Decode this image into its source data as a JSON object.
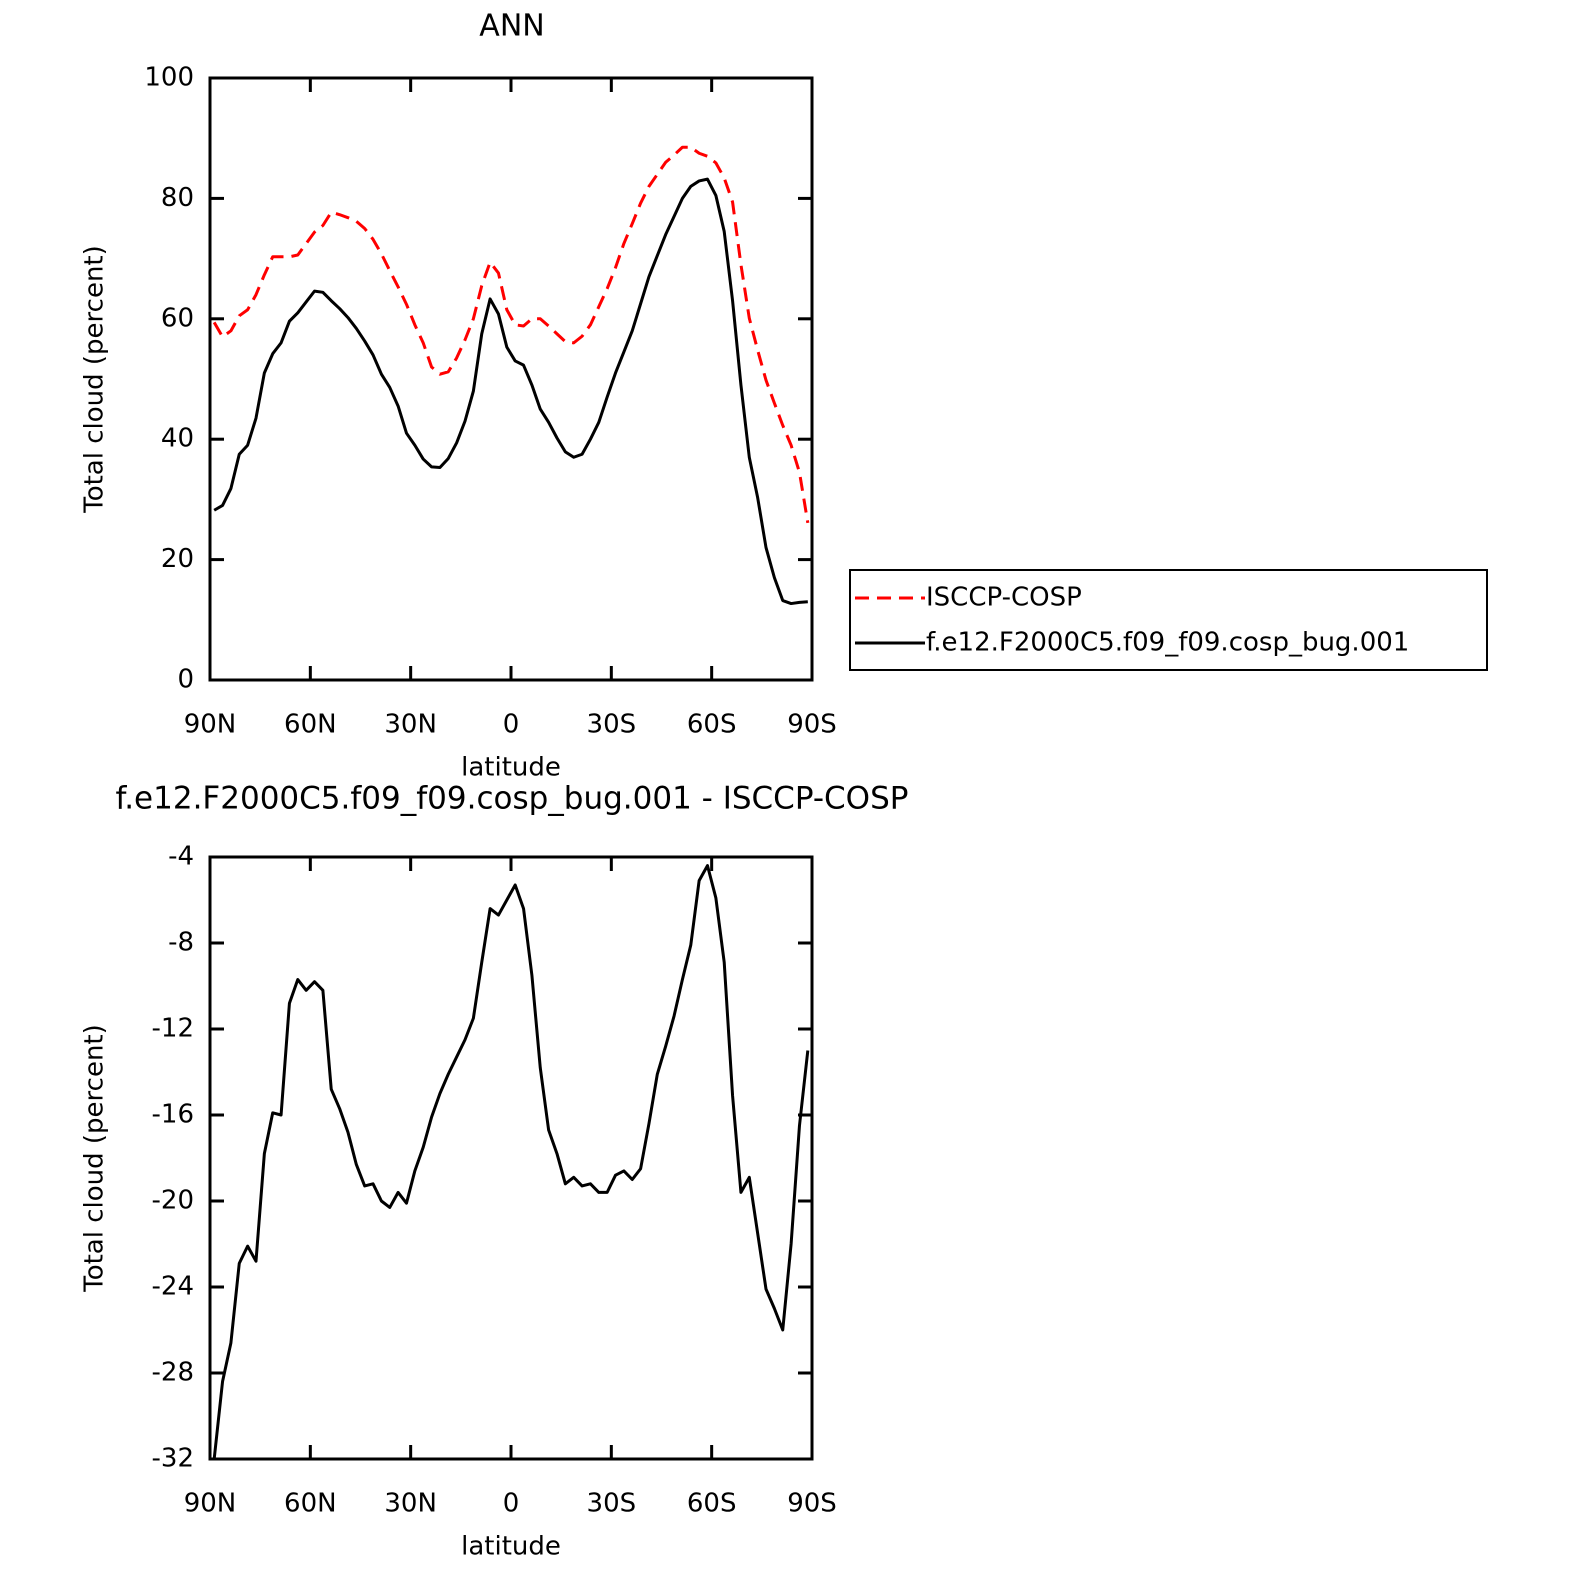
{
  "chart_data": [
    {
      "type": "line",
      "title": "ANN",
      "y_label": "Total cloud (percent)",
      "x_label": "latitude",
      "x": [
        88.75,
        86.25,
        83.75,
        81.25,
        78.75,
        76.25,
        73.75,
        71.25,
        68.75,
        66.25,
        63.75,
        61.25,
        58.75,
        56.25,
        53.75,
        51.25,
        48.75,
        46.25,
        43.75,
        41.25,
        38.75,
        36.25,
        33.75,
        31.25,
        28.75,
        26.25,
        23.75,
        21.25,
        18.75,
        16.25,
        13.75,
        11.25,
        8.75,
        6.25,
        3.75,
        1.25,
        -1.25,
        -3.75,
        -6.25,
        -8.75,
        -11.25,
        -13.75,
        -16.25,
        -18.75,
        -21.25,
        -23.75,
        -26.25,
        -28.75,
        -31.25,
        -33.75,
        -36.25,
        -38.75,
        -41.25,
        -43.75,
        -46.25,
        -48.75,
        -51.25,
        -53.75,
        -56.25,
        -58.75,
        -61.25,
        -63.75,
        -66.25,
        -68.75,
        -71.25,
        -73.75,
        -76.25,
        -78.75,
        -81.25,
        -83.75,
        -86.25,
        -88.75
      ],
      "series": [
        {
          "name": "ISCCP-COSP",
          "color": "#ff0000",
          "line_style": "dashed",
          "values": [
            59.4,
            57,
            58,
            60.5,
            61.5,
            64,
            67.3,
            70.3,
            70.3,
            70.3,
            70.6,
            72.5,
            74.4,
            75.5,
            77.7,
            77.3,
            76.8,
            76.2,
            75,
            73.2,
            70.8,
            68,
            65.3,
            62.4,
            59,
            56,
            52,
            50.8,
            51.2,
            53.5,
            56.5,
            60,
            65.5,
            69.4,
            67.6,
            61.5,
            59,
            58.8,
            60,
            60,
            58.8,
            57.5,
            56.2,
            56,
            57.1,
            59,
            62,
            65,
            68.5,
            72.5,
            75.8,
            79.2,
            82,
            84,
            86,
            87.2,
            88.5,
            88.5,
            87.5,
            87,
            85.9,
            83.4,
            79.4,
            69,
            60.1,
            54.8,
            49.8,
            46,
            42.3,
            39,
            34.5,
            26.1
          ]
        },
        {
          "name": "f.e12.F2000C5.f09_f09.cosp_bug.001",
          "color": "#000000",
          "line_style": "solid",
          "values": [
            28.2,
            29,
            31.8,
            37.5,
            39,
            43.5,
            51,
            54.2,
            56,
            59.6,
            61,
            62.8,
            64.6,
            64.4,
            63,
            61.7,
            60.2,
            58.4,
            56.3,
            54,
            50.8,
            48.6,
            45.5,
            41,
            39,
            36.7,
            35.4,
            35.3,
            36.8,
            39.4,
            43,
            48,
            57.5,
            63.3,
            60.8,
            55.3,
            53,
            52.3,
            49,
            45,
            42.8,
            40.2,
            37.9,
            37,
            37.5,
            40,
            42.8,
            47,
            51,
            54.5,
            58,
            62.5,
            67,
            70.5,
            74,
            77,
            80,
            82,
            82.9,
            83.2,
            80.5,
            74.5,
            63,
            49,
            37,
            30.3,
            22,
            17,
            13.2,
            12.7,
            12.9,
            13
          ]
        }
      ],
      "xlim": [
        90,
        -90
      ],
      "xticks": [
        {
          "value": 90,
          "label": "90N"
        },
        {
          "value": 60,
          "label": "60N"
        },
        {
          "value": 30,
          "label": "30N"
        },
        0,
        {
          "value": -30,
          "label": "30S"
        },
        {
          "value": -60,
          "label": "60S"
        },
        {
          "value": -90,
          "label": "90S"
        }
      ],
      "ylim": [
        0,
        100
      ],
      "yticks": [
        0,
        20,
        40,
        60,
        80,
        100
      ],
      "legend": "right"
    },
    {
      "type": "line",
      "title": "f.e12.F2000C5.f09_f09.cosp_bug.001 - ISCCP-COSP",
      "y_label": "Total cloud (percent)",
      "x_label": "latitude",
      "x": [
        88.75,
        86.25,
        83.75,
        81.25,
        78.75,
        76.25,
        73.75,
        71.25,
        68.75,
        66.25,
        63.75,
        61.25,
        58.75,
        56.25,
        53.75,
        51.25,
        48.75,
        46.25,
        43.75,
        41.25,
        38.75,
        36.25,
        33.75,
        31.25,
        28.75,
        26.25,
        23.75,
        21.25,
        18.75,
        16.25,
        13.75,
        11.25,
        8.75,
        6.25,
        3.75,
        1.25,
        -1.25,
        -3.75,
        -6.25,
        -8.75,
        -11.25,
        -13.75,
        -16.25,
        -18.75,
        -21.25,
        -23.75,
        -26.25,
        -28.75,
        -31.25,
        -33.75,
        -36.25,
        -38.75,
        -41.25,
        -43.75,
        -46.25,
        -48.75,
        -51.25,
        -53.75,
        -56.25,
        -58.75,
        -61.25,
        -63.75,
        -66.25,
        -68.75,
        -71.25,
        -73.75,
        -76.25,
        -78.75,
        -81.25,
        -83.75,
        -86.25,
        -88.75
      ],
      "values": [
        -32,
        -28.4,
        -26.6,
        -22.9,
        -22.1,
        -22.8,
        -17.8,
        -15.9,
        -16.0,
        -10.8,
        -9.7,
        -10.2,
        -9.8,
        -10.2,
        -14.8,
        -15.7,
        -16.8,
        -18.3,
        -19.3,
        -19.2,
        -20,
        -20.3,
        -19.6,
        -20.1,
        -18.6,
        -17.5,
        -16.1,
        -15,
        -14.1,
        -13.3,
        -12.5,
        -11.5,
        -8.9,
        -6.4,
        -6.7,
        -6.0,
        -5.3,
        -6.4,
        -9.5,
        -13.8,
        -16.7,
        -17.8,
        -19.2,
        -18.9,
        -19.3,
        -19.2,
        -19.6,
        -19.6,
        -18.8,
        -18.6,
        -19.0,
        -18.5,
        -16.4,
        -14.1,
        -12.8,
        -11.4,
        -9.7,
        -8.1,
        -5.1,
        -4.4,
        -5.9,
        -8.9,
        -15.1,
        -19.6,
        -18.9,
        -21.5,
        -24.1,
        -25.0,
        -26.0,
        -22.0,
        -16.5,
        -13.0
      ],
      "color": "#000000",
      "xlim": [
        90,
        -90
      ],
      "xticks": [
        {
          "value": 90,
          "label": "90N"
        },
        {
          "value": 60,
          "label": "60N"
        },
        {
          "value": 30,
          "label": "30N"
        },
        0,
        {
          "value": -30,
          "label": "30S"
        },
        {
          "value": -60,
          "label": "60S"
        },
        {
          "value": -90,
          "label": "90S"
        }
      ],
      "ylim": [
        -32,
        -4
      ],
      "yticks": [
        -32,
        -28,
        -24,
        -20,
        -16,
        -12,
        -8,
        -4
      ]
    }
  ]
}
